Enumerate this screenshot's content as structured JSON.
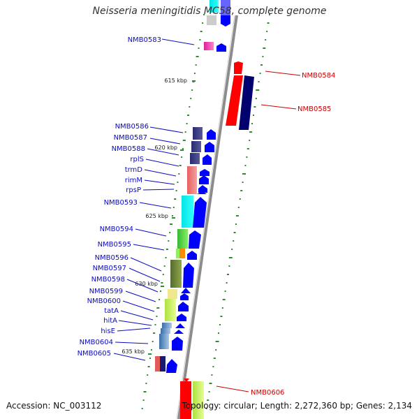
{
  "title": "Neisseria meningitidis MC58, complete genome",
  "footer": {
    "accession": "Accession: NC_003112",
    "topology": "Topology: circular; Length: 2,272,360 bp; Genes: 2,134"
  },
  "scale_labels": [
    "615 kbp",
    "620 kbp",
    "625 kbp",
    "630 kbp",
    "635 kbp"
  ],
  "genes_left": [
    "NMB0583",
    "NMB0586",
    "NMB0587",
    "NMB0588",
    "rplS",
    "trmD",
    "rimM",
    "rpsP",
    "NMB0593",
    "NMB0594",
    "NMB0595",
    "NMB0596",
    "NMB0597",
    "NMB0598",
    "NMB0599",
    "NMB0600",
    "tatA",
    "hitA",
    "hisE",
    "NMB0604",
    "NMB0605"
  ],
  "genes_right": [
    "NMB0584",
    "NMB0585",
    "NMB0606"
  ],
  "colors": {
    "label_left": "#0b0bbf",
    "label_right": "#cc0000",
    "strand_plus": "#0000ff",
    "strand_minus": "#ff0000",
    "backbone": "#8c8c8c",
    "gc_marks": "#2e8b2e"
  }
}
